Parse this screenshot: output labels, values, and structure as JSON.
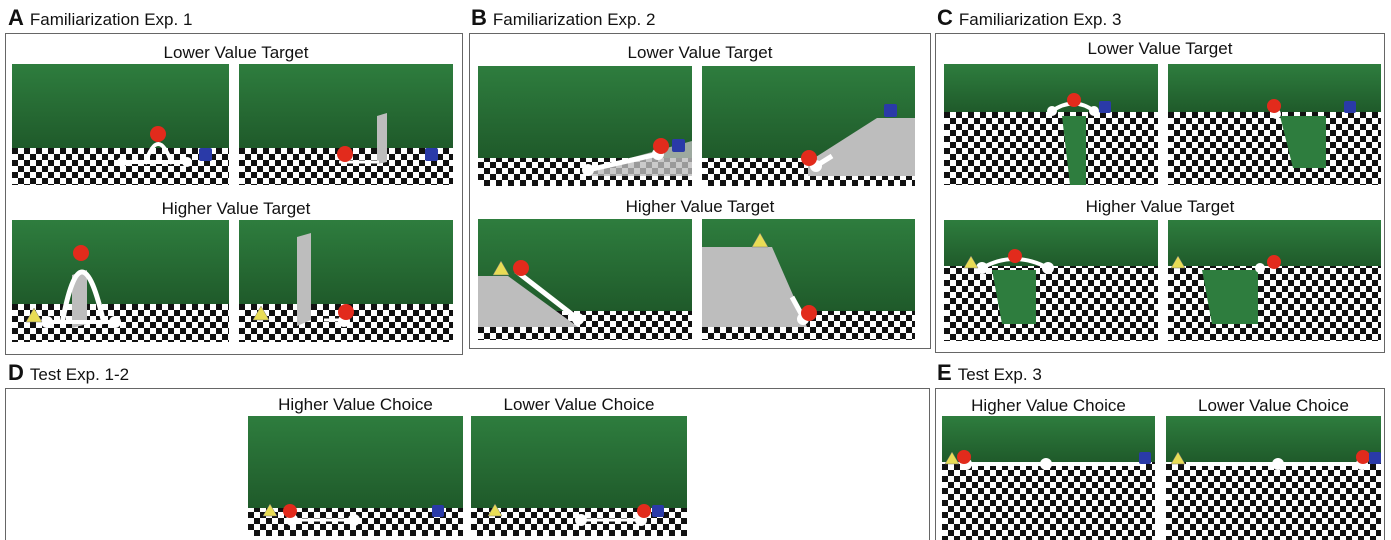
{
  "panels": {
    "A": {
      "letter": "A",
      "title": "Familiarization Exp. 1",
      "upper": "Lower Value Target",
      "lower": "Higher Value Target"
    },
    "B": {
      "letter": "B",
      "title": "Familiarization Exp. 2",
      "upper": "Lower Value Target",
      "lower": "Higher Value Target"
    },
    "C": {
      "letter": "C",
      "title": "Familiarization Exp. 3",
      "upper": "Lower Value Target",
      "lower": "Higher Value Target"
    },
    "D": {
      "letter": "D",
      "title": "Test Exp. 1-2",
      "left": "Higher Value Choice",
      "right": "Lower Value Choice"
    },
    "E": {
      "letter": "E",
      "title": "Test Exp. 3",
      "left": "Higher Value Choice",
      "right": "Lower Value Choice"
    }
  },
  "colors": {
    "sky": "#2e7d3e",
    "sky_dark": "#1f5a2a",
    "floor_dark": "#111111",
    "floor_light": "#ffffff",
    "ramp": "#bdbdbd",
    "agent_red": "#e22b1c",
    "target_blue": "#2a3aa8",
    "target_yellow": "#e8dc55"
  }
}
